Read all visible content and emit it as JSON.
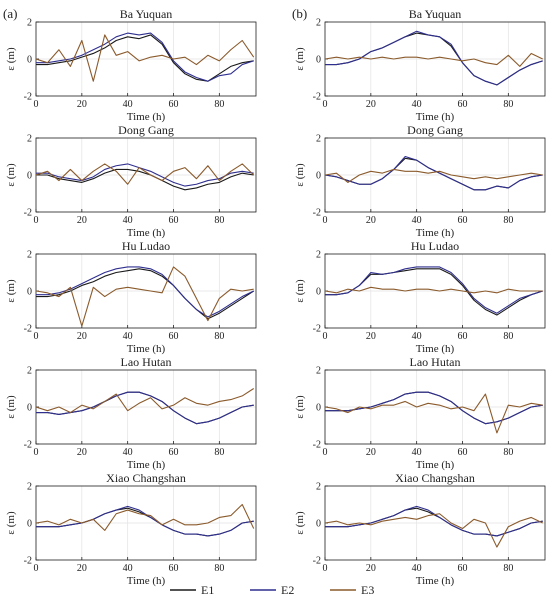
{
  "panel_labels": [
    "(a)",
    "(b)"
  ],
  "legend": [
    {
      "label": "E1",
      "color": "#1a1a1a"
    },
    {
      "label": "E2",
      "color": "#2f2f8f"
    },
    {
      "label": "E3",
      "color": "#8a5a2b"
    }
  ],
  "chart_data": [
    {
      "type": "line",
      "panel": "a",
      "title": "Ba Yuquan",
      "xlabel": "Time (h)",
      "ylabel": "ε (m)",
      "xlim": [
        0,
        96
      ],
      "ylim": [
        -2,
        2
      ],
      "xticks": [
        0,
        20,
        40,
        60,
        80
      ],
      "yticks": [
        -2,
        0,
        2
      ],
      "grid": true,
      "x": [
        0,
        5,
        10,
        15,
        20,
        25,
        30,
        35,
        40,
        45,
        50,
        55,
        60,
        65,
        70,
        75,
        80,
        85,
        90,
        95
      ],
      "series": [
        {
          "name": "E1",
          "values": [
            -0.3,
            -0.3,
            -0.2,
            -0.1,
            0.1,
            0.3,
            0.6,
            1.0,
            1.2,
            1.1,
            1.3,
            0.8,
            -0.2,
            -0.8,
            -1.1,
            -1.2,
            -0.8,
            -0.4,
            -0.2,
            -0.1
          ]
        },
        {
          "name": "E2",
          "values": [
            -0.2,
            -0.2,
            -0.1,
            0.0,
            0.2,
            0.5,
            0.8,
            1.2,
            1.4,
            1.3,
            1.4,
            0.9,
            -0.1,
            -0.7,
            -1.0,
            -1.2,
            -0.9,
            -0.8,
            -0.3,
            -0.1
          ]
        },
        {
          "name": "E3",
          "values": [
            0.0,
            -0.2,
            0.5,
            -0.4,
            1.0,
            -1.2,
            1.3,
            0.2,
            0.4,
            -0.1,
            0.1,
            0.2,
            0.0,
            0.1,
            -0.3,
            0.2,
            -0.1,
            0.5,
            1.0,
            0.1
          ]
        }
      ]
    },
    {
      "type": "line",
      "panel": "b",
      "title": "Ba Yuquan",
      "xlabel": "Time (h)",
      "ylabel": "ε (m)",
      "xlim": [
        0,
        96
      ],
      "ylim": [
        -2,
        2
      ],
      "xticks": [
        0,
        20,
        40,
        60,
        80
      ],
      "yticks": [
        -2,
        0,
        2
      ],
      "grid": true,
      "x": [
        0,
        5,
        10,
        15,
        20,
        25,
        30,
        35,
        40,
        45,
        50,
        55,
        60,
        65,
        70,
        75,
        80,
        85,
        90,
        95
      ],
      "series": [
        {
          "name": "E1",
          "values": [
            -0.3,
            -0.3,
            -0.2,
            0.0,
            0.4,
            0.6,
            0.9,
            1.2,
            1.4,
            1.3,
            1.2,
            0.7,
            -0.2,
            -0.9,
            -1.2,
            -1.4,
            -1.0,
            -0.6,
            -0.3,
            -0.1
          ]
        },
        {
          "name": "E2",
          "values": [
            -0.3,
            -0.3,
            -0.2,
            0.0,
            0.4,
            0.6,
            0.9,
            1.2,
            1.5,
            1.3,
            1.2,
            0.8,
            -0.2,
            -0.9,
            -1.2,
            -1.4,
            -1.0,
            -0.6,
            -0.3,
            -0.1
          ]
        },
        {
          "name": "E3",
          "values": [
            0.0,
            0.1,
            0.0,
            0.1,
            0.0,
            0.1,
            0.0,
            0.1,
            0.1,
            0.0,
            0.1,
            0.0,
            -0.1,
            0.0,
            -0.2,
            -0.3,
            0.2,
            -0.4,
            0.3,
            0.0
          ]
        }
      ]
    },
    {
      "type": "line",
      "panel": "a",
      "title": "Dong Gang",
      "xlabel": "Time (h)",
      "ylabel": "ε (m)",
      "xlim": [
        0,
        96
      ],
      "ylim": [
        -2,
        2
      ],
      "xticks": [
        0,
        20,
        40,
        60,
        80
      ],
      "yticks": [
        -2,
        0,
        2
      ],
      "grid": true,
      "x": [
        0,
        5,
        10,
        15,
        20,
        25,
        30,
        35,
        40,
        45,
        50,
        55,
        60,
        65,
        70,
        75,
        80,
        85,
        90,
        95
      ],
      "series": [
        {
          "name": "E1",
          "values": [
            0.0,
            0.0,
            -0.2,
            -0.3,
            -0.4,
            -0.2,
            0.1,
            0.3,
            0.3,
            0.2,
            0.0,
            -0.3,
            -0.6,
            -0.8,
            -0.7,
            -0.5,
            -0.4,
            -0.1,
            0.1,
            0.0
          ]
        },
        {
          "name": "E2",
          "values": [
            0.1,
            0.1,
            -0.1,
            -0.2,
            -0.3,
            -0.1,
            0.3,
            0.5,
            0.6,
            0.4,
            0.2,
            -0.1,
            -0.4,
            -0.6,
            -0.5,
            -0.3,
            -0.2,
            0.1,
            0.2,
            0.1
          ]
        },
        {
          "name": "E3",
          "values": [
            0.0,
            0.2,
            -0.3,
            0.3,
            -0.3,
            0.2,
            0.6,
            0.2,
            -0.5,
            0.4,
            0.0,
            -0.3,
            0.2,
            0.4,
            -0.2,
            0.5,
            -0.3,
            0.2,
            0.6,
            0.0
          ]
        }
      ]
    },
    {
      "type": "line",
      "panel": "b",
      "title": "Dong Gang",
      "xlabel": "Time (h)",
      "ylabel": "ε (m)",
      "xlim": [
        0,
        96
      ],
      "ylim": [
        -2,
        2
      ],
      "xticks": [
        0,
        20,
        40,
        60,
        80
      ],
      "yticks": [
        -2,
        0,
        2
      ],
      "grid": true,
      "x": [
        0,
        5,
        10,
        15,
        20,
        25,
        30,
        35,
        40,
        45,
        50,
        55,
        60,
        65,
        70,
        75,
        80,
        85,
        90,
        95
      ],
      "series": [
        {
          "name": "E1",
          "values": [
            0.0,
            -0.1,
            -0.3,
            -0.5,
            -0.5,
            -0.2,
            0.3,
            0.9,
            0.8,
            0.4,
            0.1,
            -0.2,
            -0.5,
            -0.8,
            -0.8,
            -0.6,
            -0.7,
            -0.3,
            -0.1,
            0.0
          ]
        },
        {
          "name": "E2",
          "values": [
            0.0,
            -0.1,
            -0.3,
            -0.5,
            -0.5,
            -0.2,
            0.3,
            1.0,
            0.8,
            0.4,
            0.1,
            -0.2,
            -0.5,
            -0.8,
            -0.8,
            -0.6,
            -0.7,
            -0.3,
            -0.1,
            0.0
          ]
        },
        {
          "name": "E3",
          "values": [
            0.0,
            0.1,
            -0.4,
            0.0,
            0.2,
            0.1,
            0.3,
            0.2,
            0.2,
            0.1,
            0.2,
            0.0,
            -0.1,
            -0.2,
            -0.1,
            -0.2,
            -0.1,
            0.0,
            0.1,
            0.0
          ]
        }
      ]
    },
    {
      "type": "line",
      "panel": "a",
      "title": "Hu Ludao",
      "xlabel": "Time (h)",
      "ylabel": "ε (m)",
      "xlim": [
        0,
        96
      ],
      "ylim": [
        -2,
        2
      ],
      "xticks": [
        0,
        20,
        40,
        60,
        80
      ],
      "yticks": [
        -2,
        0,
        2
      ],
      "grid": true,
      "x": [
        0,
        5,
        10,
        15,
        20,
        25,
        30,
        35,
        40,
        45,
        50,
        55,
        60,
        65,
        70,
        75,
        80,
        85,
        90,
        95
      ],
      "series": [
        {
          "name": "E1",
          "values": [
            -0.3,
            -0.3,
            -0.2,
            0.0,
            0.3,
            0.5,
            0.8,
            1.0,
            1.1,
            1.2,
            1.1,
            0.8,
            0.3,
            -0.4,
            -1.0,
            -1.5,
            -1.2,
            -0.8,
            -0.4,
            0.0
          ]
        },
        {
          "name": "E2",
          "values": [
            -0.2,
            -0.2,
            -0.1,
            0.1,
            0.4,
            0.7,
            1.0,
            1.2,
            1.3,
            1.3,
            1.2,
            0.9,
            0.3,
            -0.4,
            -1.0,
            -1.4,
            -1.1,
            -0.7,
            -0.3,
            0.0
          ]
        },
        {
          "name": "E3",
          "values": [
            0.0,
            -0.1,
            -0.3,
            0.2,
            -1.9,
            0.2,
            -0.3,
            0.1,
            0.2,
            0.1,
            0.0,
            -0.1,
            1.3,
            0.8,
            -0.4,
            -1.6,
            -0.4,
            0.1,
            0.0,
            0.1
          ]
        }
      ]
    },
    {
      "type": "line",
      "panel": "b",
      "title": "Hu Ludao",
      "xlabel": "Time (h)",
      "ylabel": "ε (m)",
      "xlim": [
        0,
        96
      ],
      "ylim": [
        -2,
        2
      ],
      "xticks": [
        0,
        20,
        40,
        60,
        80
      ],
      "yticks": [
        -2,
        0,
        2
      ],
      "grid": true,
      "x": [
        0,
        5,
        10,
        15,
        20,
        25,
        30,
        35,
        40,
        45,
        50,
        55,
        60,
        65,
        70,
        75,
        80,
        85,
        90,
        95
      ],
      "series": [
        {
          "name": "E1",
          "values": [
            -0.2,
            -0.2,
            -0.1,
            0.3,
            0.9,
            0.9,
            1.0,
            1.1,
            1.2,
            1.2,
            1.2,
            0.9,
            0.3,
            -0.5,
            -1.0,
            -1.3,
            -0.9,
            -0.5,
            -0.2,
            0.0
          ]
        },
        {
          "name": "E2",
          "values": [
            -0.2,
            -0.2,
            -0.1,
            0.3,
            1.0,
            0.9,
            1.0,
            1.2,
            1.3,
            1.3,
            1.3,
            1.0,
            0.4,
            -0.4,
            -0.9,
            -1.2,
            -0.8,
            -0.4,
            -0.2,
            0.0
          ]
        },
        {
          "name": "E3",
          "values": [
            0.0,
            -0.1,
            0.1,
            0.0,
            0.2,
            0.1,
            0.1,
            0.0,
            0.1,
            0.1,
            0.0,
            0.1,
            0.0,
            -0.1,
            0.0,
            -0.1,
            0.1,
            0.0,
            0.0,
            0.0
          ]
        }
      ]
    },
    {
      "type": "line",
      "panel": "a",
      "title": "Lao Hutan",
      "xlabel": "Time (h)",
      "ylabel": "ε (m)",
      "xlim": [
        0,
        96
      ],
      "ylim": [
        -2,
        2
      ],
      "xticks": [
        0,
        20,
        40,
        60,
        80
      ],
      "yticks": [
        -2,
        0,
        2
      ],
      "grid": true,
      "x": [
        0,
        5,
        10,
        15,
        20,
        25,
        30,
        35,
        40,
        45,
        50,
        55,
        60,
        65,
        70,
        75,
        80,
        85,
        90,
        95
      ],
      "series": [
        {
          "name": "E1",
          "values": [
            -0.3,
            -0.3,
            -0.4,
            -0.3,
            -0.2,
            0.0,
            0.3,
            0.6,
            0.8,
            0.8,
            0.6,
            0.3,
            -0.2,
            -0.6,
            -0.9,
            -0.8,
            -0.6,
            -0.3,
            0.0,
            0.1
          ]
        },
        {
          "name": "E2",
          "values": [
            -0.3,
            -0.3,
            -0.4,
            -0.3,
            -0.2,
            0.0,
            0.3,
            0.6,
            0.8,
            0.8,
            0.6,
            0.3,
            -0.2,
            -0.6,
            -0.9,
            -0.8,
            -0.6,
            -0.3,
            0.0,
            0.1
          ]
        },
        {
          "name": "E3",
          "values": [
            0.0,
            -0.2,
            0.0,
            -0.3,
            0.1,
            -0.1,
            0.3,
            0.7,
            -0.2,
            0.2,
            0.5,
            -0.1,
            0.1,
            0.5,
            0.2,
            0.1,
            0.3,
            0.4,
            0.6,
            1.0
          ]
        }
      ]
    },
    {
      "type": "line",
      "panel": "b",
      "title": "Lao Hutan",
      "xlabel": "Time (h)",
      "ylabel": "ε (m)",
      "xlim": [
        0,
        96
      ],
      "ylim": [
        -2,
        2
      ],
      "xticks": [
        0,
        20,
        40,
        60,
        80
      ],
      "yticks": [
        -2,
        0,
        2
      ],
      "grid": true,
      "x": [
        0,
        5,
        10,
        15,
        20,
        25,
        30,
        35,
        40,
        45,
        50,
        55,
        60,
        65,
        70,
        75,
        80,
        85,
        90,
        95
      ],
      "series": [
        {
          "name": "E1",
          "values": [
            -0.2,
            -0.2,
            -0.2,
            -0.1,
            0.0,
            0.2,
            0.4,
            0.7,
            0.8,
            0.8,
            0.6,
            0.3,
            -0.2,
            -0.6,
            -0.9,
            -0.8,
            -0.6,
            -0.3,
            0.0,
            0.1
          ]
        },
        {
          "name": "E2",
          "values": [
            -0.2,
            -0.2,
            -0.2,
            -0.1,
            0.0,
            0.2,
            0.4,
            0.7,
            0.8,
            0.8,
            0.6,
            0.3,
            -0.2,
            -0.6,
            -0.9,
            -0.8,
            -0.6,
            -0.3,
            0.0,
            0.1
          ]
        },
        {
          "name": "E3",
          "values": [
            0.0,
            -0.1,
            -0.3,
            0.0,
            -0.1,
            0.1,
            0.1,
            0.3,
            0.0,
            0.2,
            0.1,
            -0.1,
            0.0,
            -0.2,
            0.7,
            -1.4,
            0.1,
            0.0,
            0.2,
            0.1
          ]
        }
      ]
    },
    {
      "type": "line",
      "panel": "a",
      "title": "Xiao Changshan",
      "xlabel": "Time (h)",
      "ylabel": "ε (m)",
      "xlim": [
        0,
        96
      ],
      "ylim": [
        -2,
        2
      ],
      "xticks": [
        0,
        20,
        40,
        60,
        80
      ],
      "yticks": [
        -2,
        0,
        2
      ],
      "grid": true,
      "x": [
        0,
        5,
        10,
        15,
        20,
        25,
        30,
        35,
        40,
        45,
        50,
        55,
        60,
        65,
        70,
        75,
        80,
        85,
        90,
        95
      ],
      "series": [
        {
          "name": "E1",
          "values": [
            -0.2,
            -0.2,
            -0.2,
            -0.1,
            0.0,
            0.2,
            0.5,
            0.7,
            0.8,
            0.6,
            0.3,
            -0.1,
            -0.4,
            -0.6,
            -0.6,
            -0.7,
            -0.6,
            -0.4,
            0.0,
            0.1
          ]
        },
        {
          "name": "E2",
          "values": [
            -0.2,
            -0.2,
            -0.2,
            -0.1,
            0.0,
            0.2,
            0.5,
            0.7,
            0.9,
            0.7,
            0.3,
            -0.1,
            -0.4,
            -0.6,
            -0.6,
            -0.7,
            -0.6,
            -0.4,
            0.0,
            0.1
          ]
        },
        {
          "name": "E3",
          "values": [
            0.0,
            0.1,
            -0.1,
            0.2,
            0.0,
            0.2,
            -0.4,
            0.5,
            0.7,
            0.5,
            0.4,
            -0.1,
            0.2,
            -0.1,
            -0.1,
            0.0,
            0.3,
            0.4,
            1.0,
            -0.3
          ]
        }
      ]
    },
    {
      "type": "line",
      "panel": "b",
      "title": "Xiao Changshan",
      "xlabel": "Time (h)",
      "ylabel": "ε (m)",
      "xlim": [
        0,
        96
      ],
      "ylim": [
        -2,
        2
      ],
      "xticks": [
        0,
        20,
        40,
        60,
        80
      ],
      "yticks": [
        -2,
        0,
        2
      ],
      "grid": true,
      "x": [
        0,
        5,
        10,
        15,
        20,
        25,
        30,
        35,
        40,
        45,
        50,
        55,
        60,
        65,
        70,
        75,
        80,
        85,
        90,
        95
      ],
      "series": [
        {
          "name": "E1",
          "values": [
            -0.2,
            -0.2,
            -0.2,
            -0.1,
            0.0,
            0.2,
            0.4,
            0.7,
            0.8,
            0.6,
            0.3,
            -0.1,
            -0.4,
            -0.6,
            -0.6,
            -0.7,
            -0.5,
            -0.3,
            0.0,
            0.1
          ]
        },
        {
          "name": "E2",
          "values": [
            -0.2,
            -0.2,
            -0.2,
            -0.1,
            0.0,
            0.2,
            0.4,
            0.7,
            0.9,
            0.7,
            0.3,
            -0.1,
            -0.4,
            -0.6,
            -0.6,
            -0.7,
            -0.5,
            -0.3,
            0.0,
            0.1
          ]
        },
        {
          "name": "E3",
          "values": [
            0.0,
            0.1,
            -0.1,
            0.0,
            -0.1,
            0.1,
            0.2,
            0.3,
            0.2,
            0.4,
            0.5,
            0.0,
            -0.3,
            0.2,
            0.0,
            -1.3,
            -0.2,
            0.1,
            0.3,
            0.0
          ]
        }
      ]
    }
  ]
}
